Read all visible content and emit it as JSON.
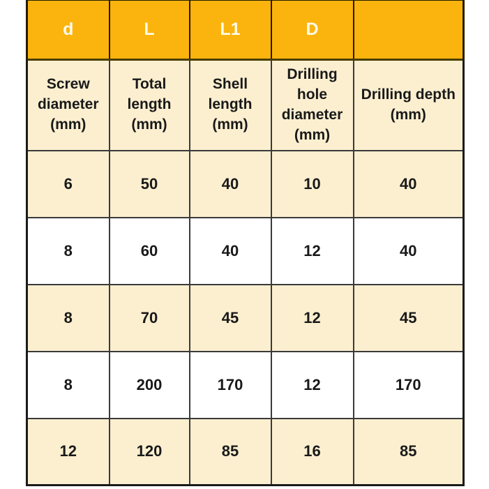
{
  "colors": {
    "header_background": "#FBB30E",
    "cream_row_background": "#FBEFD0",
    "white_row_background": "#FFFFFF",
    "header_text": "#FFFAE8",
    "body_text": "#191919",
    "outer_border": "#1B1B1B",
    "inner_border": "#3A3A3A"
  },
  "table": {
    "header_row": {
      "cells": [
        "d",
        "L",
        "L1",
        "D",
        ""
      ]
    },
    "subheader_row": {
      "cells": [
        "Screw diameter (mm)",
        "Total length (mm)",
        "Shell length (mm)",
        "Drilling hole diameter (mm)",
        "Drilling depth (mm)"
      ]
    },
    "rows": [
      [
        "6",
        "50",
        "40",
        "10",
        "40"
      ],
      [
        "8",
        "60",
        "40",
        "12",
        "40"
      ],
      [
        "8",
        "70",
        "45",
        "12",
        "45"
      ],
      [
        "8",
        "200",
        "170",
        "12",
        "170"
      ],
      [
        "12",
        "120",
        "85",
        "16",
        "85"
      ]
    ]
  },
  "chart_data": {
    "type": "table",
    "columns": [
      "d",
      "L",
      "L1",
      "D",
      ""
    ],
    "column_descriptions": [
      "Screw diameter (mm)",
      "Total length (mm)",
      "Shell length (mm)",
      "Drilling hole diameter (mm)",
      "Drilling depth (mm)"
    ],
    "rows": [
      [
        6,
        50,
        40,
        10,
        40
      ],
      [
        8,
        60,
        40,
        12,
        40
      ],
      [
        8,
        70,
        45,
        12,
        45
      ],
      [
        8,
        200,
        170,
        12,
        170
      ],
      [
        12,
        120,
        85,
        16,
        85
      ]
    ]
  }
}
